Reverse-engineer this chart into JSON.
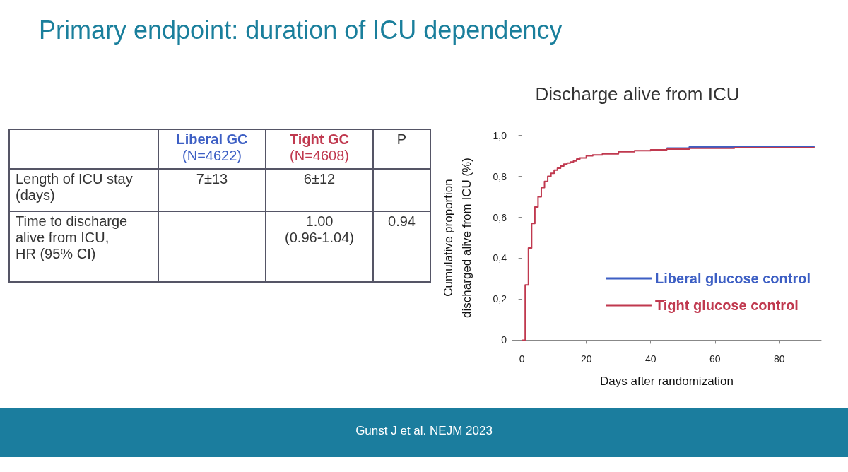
{
  "chart_data": [
    {
      "type": "other",
      "title": "Primary endpoint: duration of ICU dependency",
      "annotations": [
        "Liberal GC",
        "(N=4622)",
        "Tight GC",
        "(N=4608)",
        "P",
        "Length of ICU stay\n(days)",
        "7±13",
        "6±12",
        "Time to discharge\nalive from ICU,\nHR (95% CI)",
        "1.00\n(0.96-1.04)",
        "0.94"
      ]
    },
    {
      "type": "step",
      "title": "Discharge alive from ICU",
      "xlabel": "Days after randomization",
      "ylabel": "Cumulative proportion\ndischarged alive from ICU (%)",
      "xlim": [
        -3,
        93
      ],
      "xticks": [
        0,
        20,
        40,
        60,
        80
      ],
      "ylim": [
        -0.04,
        1.04
      ],
      "yticks": [
        {
          "value": 0,
          "label": "0"
        },
        {
          "value": 0.2,
          "label": "0,2"
        },
        {
          "value": 0.4,
          "label": "0,4"
        },
        {
          "value": 0.6,
          "label": "0,6"
        },
        {
          "value": 0.8,
          "label": "0,8"
        },
        {
          "value": 1,
          "label": "1,0"
        }
      ],
      "legend": "bottom right",
      "grid": false,
      "marker": "none",
      "line_style": "solid",
      "annotations": [
        "Gunst J et al. NEJM 2023"
      ],
      "series": [
        {
          "name": "Liberal glucose control",
          "color": "#3d5fc4",
          "x": [
            45,
            52,
            66,
            91
          ],
          "values": [
            0.938,
            0.943,
            0.947,
            0.947
          ]
        },
        {
          "name": "Tight glucose control",
          "color": "#c0394f",
          "x": [
            0,
            1,
            2,
            3,
            4,
            5,
            6,
            7,
            8,
            9,
            10,
            11,
            12,
            13,
            14,
            15,
            16,
            17,
            18,
            20,
            22,
            25,
            30,
            35,
            40,
            45,
            52,
            66,
            91
          ],
          "values": [
            0,
            0.27,
            0.45,
            0.57,
            0.65,
            0.7,
            0.745,
            0.775,
            0.8,
            0.815,
            0.83,
            0.84,
            0.85,
            0.86,
            0.865,
            0.87,
            0.875,
            0.885,
            0.89,
            0.9,
            0.905,
            0.91,
            0.92,
            0.925,
            0.93,
            0.933,
            0.937,
            0.94,
            0.94
          ]
        }
      ]
    }
  ]
}
